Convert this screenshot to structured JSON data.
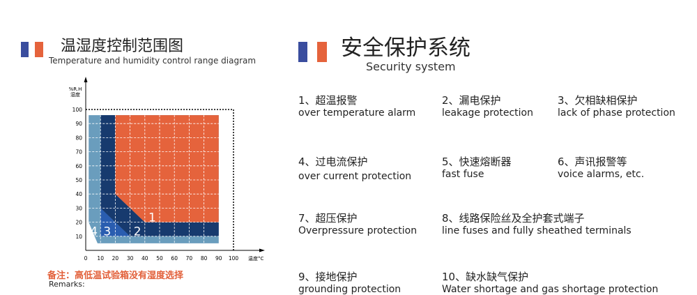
{
  "left": {
    "title": "温湿度控制范围图",
    "subtitle": "Temperature and humidity control range diagram",
    "note": "备注：高低温试验箱没有湿度选择",
    "remarks": "Remarks:"
  },
  "right": {
    "title": "安全保护系统",
    "subtitle": "Security system",
    "items": [
      {
        "cn": "1、超温报警",
        "en": "over temperature alarm"
      },
      {
        "cn": "2、漏电保护",
        "en": "leakage protection"
      },
      {
        "cn": "3、欠相缺相保护",
        "en": "lack of phase protection"
      },
      {
        "cn": "4、过电流保护",
        "en": "over current protection"
      },
      {
        "cn": "5、快速熔断器",
        "en": "fast fuse"
      },
      {
        "cn": "6、声讯报警等",
        "en": "voice alarms, etc."
      },
      {
        "cn": "7、超压保护",
        "en": "Overpressure protection"
      },
      {
        "cn": "8、线路保险丝及全护套式端子",
        "en": "line fuses and fully sheathed terminals"
      },
      {
        "cn": "9、接地保护",
        "en": "grounding protection"
      },
      {
        "cn": "10、缺水缺气保护",
        "en": "Water shortage and gas shortage protection"
      }
    ]
  },
  "colors": {
    "blue": "#3a4d9e",
    "orange": "#e5633c",
    "light_blue": "#6a9dbd",
    "navy": "#173a6e",
    "mid_blue": "#2a5db0"
  },
  "chart_data": {
    "type": "area",
    "xlabel": "温度°C",
    "ylabel": "%R.H 湿度",
    "ylabel_line1": "%R.H",
    "ylabel_line2": "湿度",
    "xlim": [
      0,
      100
    ],
    "ylim": [
      0,
      100
    ],
    "xticks": [
      0,
      10,
      20,
      30,
      40,
      50,
      60,
      70,
      80,
      90,
      100
    ],
    "yticks": [
      10,
      20,
      30,
      40,
      50,
      60,
      70,
      80,
      90,
      100
    ],
    "grid": true,
    "regions": [
      {
        "label": "4",
        "color": "#6a9dbd",
        "polygon": [
          [
            2,
            96
          ],
          [
            90,
            96
          ],
          [
            90,
            5
          ],
          [
            8,
            5
          ],
          [
            2,
            20
          ]
        ]
      },
      {
        "label": "3",
        "color": "#2a5db0",
        "polygon": [
          [
            10,
            30
          ],
          [
            30,
            10
          ],
          [
            10,
            10
          ]
        ]
      },
      {
        "label": "2",
        "color": "#173a6e",
        "polygon": [
          [
            10,
            96
          ],
          [
            20,
            96
          ],
          [
            20,
            40
          ],
          [
            40,
            20
          ],
          [
            90,
            20
          ],
          [
            90,
            10
          ],
          [
            30,
            10
          ],
          [
            10,
            30
          ]
        ]
      },
      {
        "label": "1",
        "color": "#e5633c",
        "polygon": [
          [
            20,
            96
          ],
          [
            90,
            96
          ],
          [
            90,
            20
          ],
          [
            40,
            20
          ],
          [
            20,
            40
          ]
        ]
      }
    ],
    "region_labels": [
      {
        "text": "1",
        "x": 45,
        "y": 24
      },
      {
        "text": "2",
        "x": 35,
        "y": 14
      },
      {
        "text": "3",
        "x": 14.5,
        "y": 14
      },
      {
        "text": "4",
        "x": 5.5,
        "y": 14
      }
    ]
  }
}
